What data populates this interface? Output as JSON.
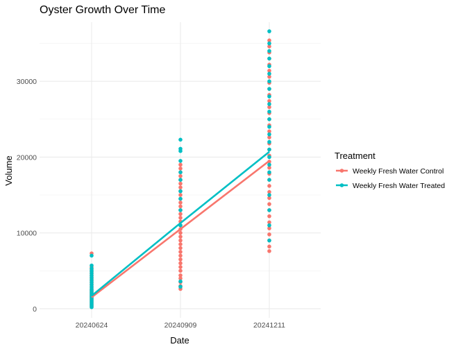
{
  "chart_data": {
    "type": "scatter",
    "title": "Oyster Growth Over Time",
    "xlabel": "Date",
    "ylabel": "Volume",
    "categories": [
      "20240624",
      "20240909",
      "20241211"
    ],
    "ylim": [
      -1200,
      37800
    ],
    "yticks": [
      0,
      10000,
      20000,
      30000
    ],
    "grid": true,
    "legend": {
      "title": "Treatment",
      "placement": "right"
    },
    "series": [
      {
        "name": "Weekly Fresh Water Control",
        "color": "#F8766D",
        "mean": [
          1500,
          10500,
          19500
        ],
        "points": [
          [
            300,
            500,
            700,
            900,
            1100,
            1300,
            1500,
            1700,
            1900,
            2100,
            2300,
            2500,
            2800,
            3100,
            3400,
            3700,
            4000,
            4300,
            4600,
            4900,
            5200,
            5500,
            7300
          ],
          [
            2600,
            3000,
            3500,
            4000,
            4400,
            5000,
            5500,
            6000,
            6500,
            7000,
            7500,
            8000,
            8500,
            9000,
            9500,
            10000,
            10500,
            11000,
            11500,
            12000,
            12500,
            13000,
            13500,
            14000,
            14500,
            15000,
            15500,
            16000,
            16500,
            17000,
            17500,
            18000,
            18500,
            19000
          ],
          [
            7600,
            8200,
            9000,
            9800,
            10600,
            11400,
            12200,
            13000,
            13800,
            14600,
            15400,
            16200,
            17000,
            17800,
            18600,
            19400,
            20200,
            21000,
            21800,
            22600,
            23400,
            24200,
            25000,
            25800,
            26600,
            27400,
            28200,
            29000,
            29800,
            30600,
            31400,
            32200,
            33000,
            33800,
            34600,
            35400
          ]
        ]
      },
      {
        "name": "Weekly Fresh Water Treated",
        "color": "#00BFC4",
        "mean": [
          1700,
          11300,
          20700
        ],
        "points": [
          [
            200,
            400,
            600,
            800,
            1000,
            1200,
            1400,
            1600,
            1800,
            2000,
            2200,
            2400,
            2600,
            2900,
            3200,
            3500,
            3800,
            4100,
            4400,
            4700,
            5000,
            5300,
            5700,
            7000
          ],
          [
            2900,
            3600,
            11000,
            13000,
            14500,
            15500,
            17000,
            18000,
            19500,
            20800,
            21100,
            22300
          ],
          [
            9000,
            11000,
            13000,
            15000,
            17000,
            18000,
            19000,
            20000,
            21000,
            22000,
            23000,
            24000,
            25000,
            26000,
            27000,
            28000,
            29000,
            30000,
            31000,
            32000,
            33000,
            34000,
            35000,
            36600
          ]
        ]
      }
    ]
  }
}
